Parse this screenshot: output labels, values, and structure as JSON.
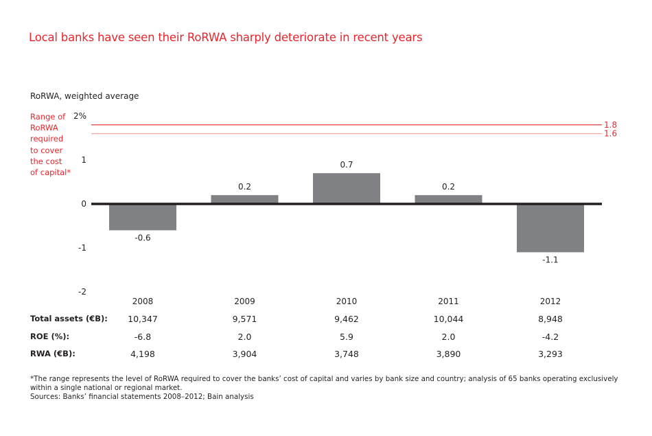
{
  "title": "Local banks have seen their RoRWA sharply deteriorate in recent years",
  "subtitle": "RoRWA, weighted average",
  "range_label_lines": [
    "Range of",
    "RoRWA",
    "required",
    "to cover",
    "the cost",
    "of capital*"
  ],
  "colors": {
    "accent": "#e8252c",
    "reference_light": "#f4a6a6",
    "bar": "#808184",
    "axis": "#231f20"
  },
  "chart_data": {
    "type": "bar",
    "title": "Local banks have seen their RoRWA sharply deteriorate in recent years",
    "ylabel": "RoRWA, weighted average",
    "xlabel": "",
    "categories": [
      "2008",
      "2009",
      "2010",
      "2011",
      "2012"
    ],
    "values": [
      -0.6,
      0.2,
      0.7,
      0.2,
      -1.1
    ],
    "value_labels": [
      "-0.6",
      "0.2",
      "0.7",
      "0.2",
      "-1.1"
    ],
    "ylim": [
      -2,
      2
    ],
    "yticks": [
      2,
      1,
      0,
      -1,
      -2
    ],
    "ytick_labels": [
      "2%",
      "1",
      "0",
      "-1",
      "-2"
    ],
    "grid": false,
    "reference_lines": [
      {
        "value": 1.8,
        "label": "1.8",
        "style": "dark-red"
      },
      {
        "value": 1.6,
        "label": "1.6",
        "style": "light-red"
      }
    ],
    "reference_range_label": "Range of RoRWA required to cover the cost of capital*"
  },
  "table": {
    "rows": [
      {
        "label": "Total assets (€B):",
        "values": [
          "10,347",
          "9,571",
          "9,462",
          "10,044",
          "8,948"
        ]
      },
      {
        "label": "ROE (%):",
        "values": [
          "-6.8",
          "2.0",
          "5.9",
          "2.0",
          "-4.2"
        ]
      },
      {
        "label": "RWA (€B):",
        "values": [
          "4,198",
          "3,904",
          "3,748",
          "3,890",
          "3,293"
        ]
      }
    ]
  },
  "footnote": {
    "note": "*The range represents the level of RoRWA required to cover the banks’ cost of capital and varies by bank size and country; analysis of 65 banks operating exclusively within a single national or regional market.",
    "sources": "Sources: Banks’ financial statements 2008–2012; Bain analysis"
  }
}
